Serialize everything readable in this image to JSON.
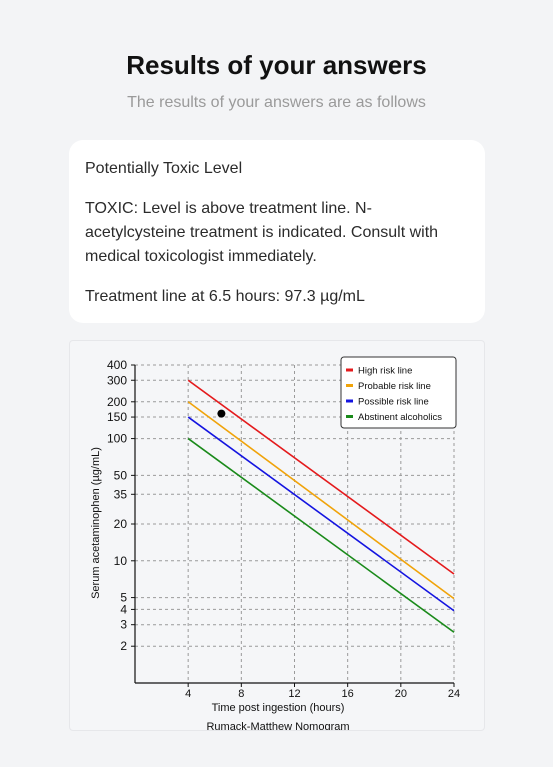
{
  "header": {
    "title": "Results of your answers",
    "subtitle": "The results of your answers are as follows"
  },
  "result": {
    "level": "Potentially Toxic Level",
    "description": "TOXIC: Level is above treatment line. N-acetylcysteine treatment is indicated. Consult with medical toxicologist immediately.",
    "treatment_line": "Treatment line at 6.5 hours: 97.3 µg/mL"
  },
  "chart_data": {
    "type": "line",
    "title": "Rumack-Matthew Nomogram",
    "xlabel": "Time post ingestion (hours)",
    "ylabel": "Serum acetaminophen (µg/mL)",
    "xlim": [
      0,
      24
    ],
    "ylim": [
      1,
      400
    ],
    "yscale": "log",
    "xticks": [
      4,
      8,
      12,
      16,
      20,
      24
    ],
    "yticks": [
      2,
      3,
      4,
      5,
      10,
      20,
      35,
      50,
      100,
      150,
      200,
      300,
      400
    ],
    "grid": true,
    "legend": "top-right",
    "series": [
      {
        "name": "High risk line",
        "color": "#e41a1c",
        "x": [
          4,
          24
        ],
        "y": [
          300,
          7.8
        ]
      },
      {
        "name": "Probable risk line",
        "color": "#f0a30a",
        "x": [
          4,
          24
        ],
        "y": [
          200,
          4.9
        ]
      },
      {
        "name": "Possible risk line",
        "color": "#1414e0",
        "x": [
          4,
          24
        ],
        "y": [
          150,
          3.9
        ]
      },
      {
        "name": "Abstinent alcoholics",
        "color": "#1a8a1a",
        "x": [
          4,
          24
        ],
        "y": [
          100,
          2.6
        ]
      }
    ],
    "point": {
      "x": 6.5,
      "y": 160,
      "color": "#000000"
    }
  }
}
